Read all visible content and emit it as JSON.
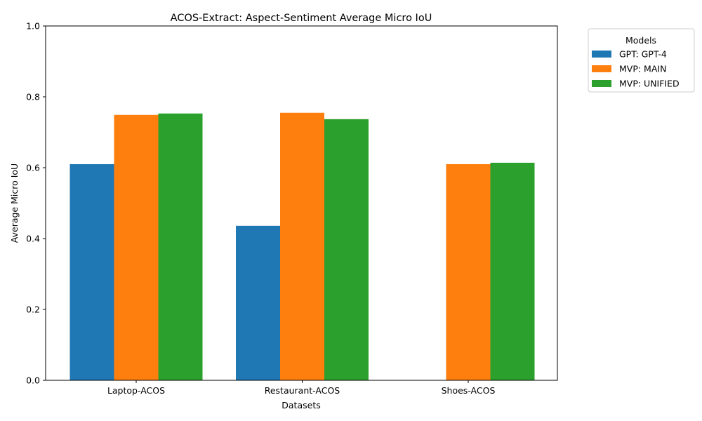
{
  "chart_data": {
    "type": "bar",
    "title": "ACOS-Extract: Aspect-Sentiment Average Micro IoU",
    "xlabel": "Datasets",
    "ylabel": "Average Micro IoU",
    "ylim": [
      0,
      1.0
    ],
    "yticks": [
      "0.0",
      "0.2",
      "0.4",
      "0.6",
      "0.8",
      "1.0"
    ],
    "categories": [
      "Laptop-ACOS",
      "Restaurant-ACOS",
      "Shoes-ACOS"
    ],
    "legend_title": "Models",
    "legend_position": "outside-top-right",
    "grid": false,
    "series": [
      {
        "name": "GPT: GPT-4",
        "color": "#1f77b4",
        "values": [
          0.61,
          0.436,
          null
        ]
      },
      {
        "name": "MVP: MAIN",
        "color": "#ff7f0e",
        "values": [
          0.749,
          0.755,
          0.61
        ]
      },
      {
        "name": "MVP: UNIFIED",
        "color": "#2ca02c",
        "values": [
          0.753,
          0.737,
          0.614
        ]
      }
    ]
  }
}
